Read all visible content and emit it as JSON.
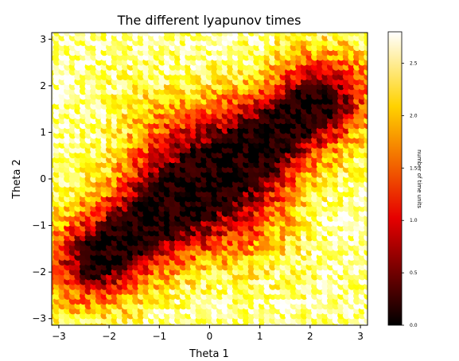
{
  "chart_data": {
    "type": "heatmap",
    "title": "The different lyapunov times",
    "xlabel": "Theta 1",
    "ylabel": "Theta 2",
    "xlim": [
      -3.14159,
      3.14159
    ],
    "ylim": [
      -3.14159,
      3.14159
    ],
    "x_ticks": [
      -3,
      -2,
      -1,
      0,
      1,
      2,
      3
    ],
    "y_ticks": [
      -3,
      -2,
      -1,
      0,
      1,
      2,
      3
    ],
    "x_tick_labels": [
      "−3",
      "−2",
      "−1",
      "0",
      "1",
      "2",
      "3"
    ],
    "y_tick_labels": [
      "−3",
      "−2",
      "−1",
      "0",
      "1",
      "2",
      "3"
    ],
    "grid_points_per_axis": 61,
    "marker": "circle",
    "colormap": "hot",
    "colorbar": {
      "label": "number of time units",
      "range": [
        0.0,
        2.8
      ],
      "ticks": [
        0.0,
        0.5,
        1.0,
        1.5,
        2.0,
        2.5
      ],
      "tick_labels": [
        "0.0",
        "0.5",
        "1.0",
        "1.5",
        "2.0",
        "2.5"
      ]
    },
    "pattern": "Values are near 0 (black) along a diagonal band from about (-2.1, -1.6) to (2.1, 1.6), rising through red and orange to about 2.8 (white/yellow) toward the corners",
    "value_range": [
      0.0,
      2.8
    ]
  },
  "colors": {
    "background": "#ffffff",
    "axes_edge": "#000000",
    "colormap_stops": [
      "#000000",
      "#e60000",
      "#ffd200",
      "#ffffff"
    ]
  }
}
